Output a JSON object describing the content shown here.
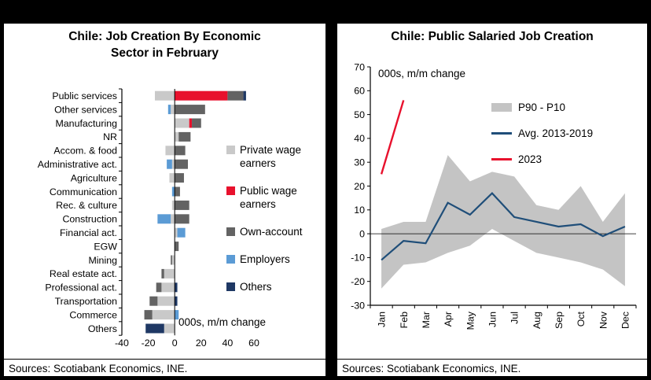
{
  "page": {
    "background": "#000000",
    "panel_background": "#ffffff"
  },
  "left_panel": {
    "title_line1": "Chile: Job Creation By Economic",
    "title_line2": "Sector in February",
    "note": "000s, m/m change",
    "source": "Sources: Scotiabank Economics, INE."
  },
  "right_panel": {
    "title": "Chile: Public Salaried Job Creation",
    "note": "000s, m/m change",
    "source": "Sources: Scotiabank Economics, INE."
  },
  "chart_data": [
    {
      "type": "bar",
      "orientation": "horizontal",
      "stacked": true,
      "title": "Chile: Job Creation By Economic Sector in February",
      "note": "000s, m/m change",
      "xlabel": "",
      "ylabel": "",
      "xlim": [
        -40,
        60
      ],
      "xticks": [
        -40,
        -20,
        0,
        20,
        40,
        60
      ],
      "legend_position": "inside-right",
      "grid": false,
      "categories": [
        "Public services",
        "Other services",
        "Manufacturing",
        "NR",
        "Accom. & food",
        "Administrative act.",
        "Agriculture",
        "Communication",
        "Rec. & culture",
        "Construction",
        "Financial act.",
        "EGW",
        "Mining",
        "Real estate act.",
        "Professional act.",
        "Transportation",
        "Commerce",
        "Others"
      ],
      "series": [
        {
          "name": "Private wage earners",
          "color": "#c9c9c9",
          "values": [
            -15,
            -3,
            11,
            3,
            -7,
            -2,
            -4,
            0,
            -2,
            -3,
            2,
            0,
            -2,
            -8,
            -10,
            -13,
            -17,
            -8
          ]
        },
        {
          "name": "Public wage earners",
          "color": "#e8112d",
          "values": [
            40,
            0,
            2,
            0,
            0,
            0,
            0,
            0,
            0,
            0,
            0,
            0,
            0,
            0,
            0,
            0,
            0,
            0
          ]
        },
        {
          "name": "Own-account",
          "color": "#636363",
          "values": [
            12,
            23,
            7,
            9,
            8,
            10,
            7,
            4,
            11,
            11,
            0,
            3,
            -1,
            -2,
            -4,
            -6,
            -6,
            0
          ]
        },
        {
          "name": "Employers",
          "color": "#5b9bd5",
          "values": [
            0,
            -2,
            0,
            0,
            0,
            -4,
            0,
            -2,
            0,
            -10,
            6,
            0,
            0,
            0,
            0,
            0,
            3,
            0
          ]
        },
        {
          "name": "Others",
          "color": "#1f3864",
          "values": [
            2,
            0,
            0,
            0,
            0,
            0,
            0,
            0,
            0,
            0,
            0,
            0,
            0,
            0,
            2,
            2,
            0,
            -14
          ]
        }
      ]
    },
    {
      "type": "line",
      "title": "Chile: Public Salaried Job Creation",
      "note": "000s, m/m change",
      "xlabel": "",
      "ylabel": "",
      "ylim": [
        -30,
        70
      ],
      "yticks": [
        -30,
        -20,
        -10,
        0,
        10,
        20,
        30,
        40,
        50,
        60,
        70
      ],
      "legend_position": "inside-top-right",
      "grid": false,
      "x": [
        "Jan",
        "Feb",
        "Mar",
        "Apr",
        "May",
        "Jun",
        "Jul",
        "Aug",
        "Sep",
        "Oct",
        "Nov",
        "Dec"
      ],
      "series": [
        {
          "name": "P90 - P10",
          "style": "band",
          "color": "#c4c4c4",
          "upper": [
            2,
            5,
            5,
            33,
            22,
            26,
            24,
            12,
            10,
            20,
            5,
            17
          ],
          "lower": [
            -23,
            -13,
            -12,
            -8,
            -5,
            2,
            -3,
            -8,
            -10,
            -12,
            -15,
            -22
          ]
        },
        {
          "name": "Avg. 2013-2019",
          "style": "line",
          "color": "#1f4e79",
          "values": [
            -11,
            -3,
            -4,
            13,
            8,
            17,
            7,
            5,
            3,
            4,
            -1,
            3
          ]
        },
        {
          "name": "2023",
          "style": "line",
          "color": "#e8112d",
          "values": [
            25,
            56,
            null,
            null,
            null,
            null,
            null,
            null,
            null,
            null,
            null,
            null
          ]
        }
      ]
    }
  ]
}
